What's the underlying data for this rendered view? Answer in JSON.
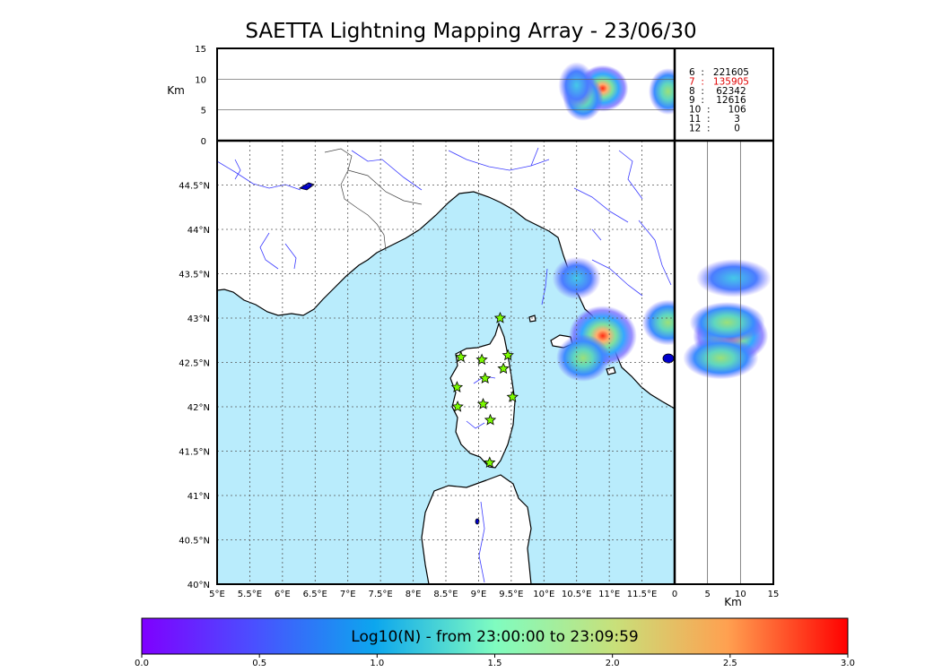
{
  "chart_data": {
    "type": "scatter",
    "title": "SAETTA Lightning Mapping Array - 23/06/30",
    "map": {
      "lon_range": [
        5,
        12
      ],
      "lat_range": [
        40,
        45
      ],
      "lon_ticks": [
        "5°E",
        "5.5°E",
        "6°E",
        "6.5°E",
        "7°E",
        "7.5°E",
        "8°E",
        "8.5°E",
        "9°E",
        "9.5°E",
        "10°E",
        "10.5°E",
        "11°E",
        "11.5°E"
      ],
      "lat_ticks": [
        "40°N",
        "40.5°N",
        "41°N",
        "41.5°N",
        "42°N",
        "42.5°N",
        "43°N",
        "43.5°N",
        "44°N",
        "44.5°N"
      ],
      "grid": true
    },
    "altitude_panel": {
      "ylabel": "Km",
      "yticks": [
        "0",
        "5",
        "10",
        "15"
      ],
      "y_range": [
        0,
        15
      ]
    },
    "side_panel": {
      "xlabel": "Km",
      "xticks": [
        "0",
        "5",
        "10",
        "15"
      ],
      "x_range": [
        0,
        15
      ]
    },
    "stations": [
      {
        "lon": 9.33,
        "lat": 43.0
      },
      {
        "lon": 8.73,
        "lat": 42.56
      },
      {
        "lon": 9.05,
        "lat": 42.53
      },
      {
        "lon": 9.45,
        "lat": 42.58
      },
      {
        "lon": 9.1,
        "lat": 42.32
      },
      {
        "lon": 9.38,
        "lat": 42.43
      },
      {
        "lon": 8.67,
        "lat": 42.22
      },
      {
        "lon": 9.52,
        "lat": 42.11
      },
      {
        "lon": 8.68,
        "lat": 42.0
      },
      {
        "lon": 9.07,
        "lat": 42.03
      },
      {
        "lon": 9.18,
        "lat": 41.85
      },
      {
        "lon": 9.17,
        "lat": 41.37
      }
    ],
    "activity_clusters": [
      {
        "lon": 10.9,
        "lat": 42.8,
        "alt_km": 8.5,
        "intensity": 2.4
      },
      {
        "lon": 10.6,
        "lat": 42.55,
        "alt_km": 7.0,
        "intensity": 1.6
      },
      {
        "lon": 10.5,
        "lat": 43.45,
        "alt_km": 9.0,
        "intensity": 1.3
      },
      {
        "lon": 11.9,
        "lat": 42.95,
        "alt_km": 8.0,
        "intensity": 1.5
      }
    ],
    "counts": [
      {
        "label": "6  :   221605",
        "color": "#000000"
      },
      {
        "label": "7  :   135905",
        "color": "#e00000"
      },
      {
        "label": "8  :    62342",
        "color": "#000000"
      },
      {
        "label": "9  :    12616",
        "color": "#000000"
      },
      {
        "label": "10  :      106",
        "color": "#000000"
      },
      {
        "label": "11  :        3",
        "color": "#000000"
      },
      {
        "label": "12  :        0",
        "color": "#000000"
      }
    ],
    "colorbar": {
      "label": "Log10(N) - from 23:00:00 to 23:09:59",
      "range": [
        0,
        3
      ],
      "ticks": [
        "0.0",
        "0.5",
        "1.0",
        "1.5",
        "2.0",
        "2.5",
        "3.0"
      ]
    }
  },
  "colors": {
    "sea": "#b9ecfc",
    "coast": "#000000",
    "rivers": "#3b3bff",
    "borders": "#444444",
    "grid": "#555555",
    "station_fill": "#7cfc00"
  }
}
